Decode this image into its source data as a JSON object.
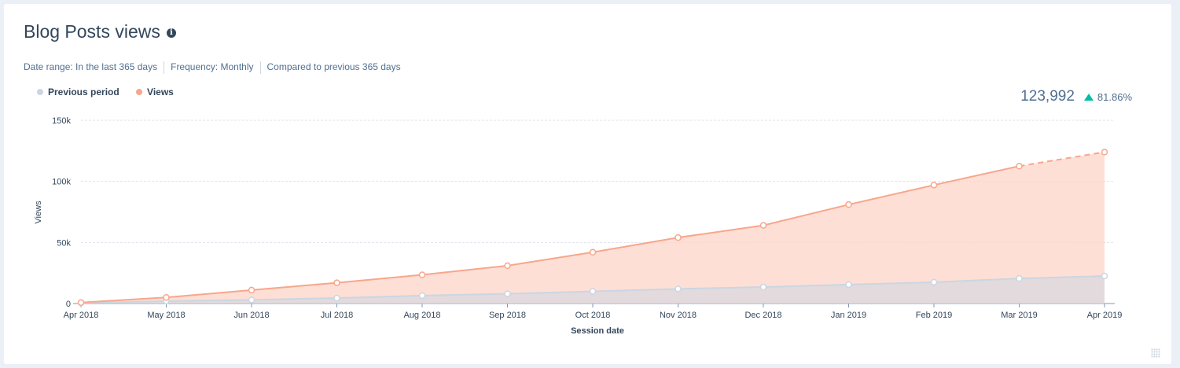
{
  "header": {
    "title": "Blog Posts views",
    "info_icon": "info-icon"
  },
  "filters": {
    "date_range": "Date range: In the last 365 days",
    "frequency": "Frequency: Monthly",
    "compare": "Compared to previous 365 days"
  },
  "kpi": {
    "value": "123,992",
    "change": "81.86%",
    "trend": "up",
    "trend_color": "#00bda5"
  },
  "chart_data": {
    "type": "area",
    "xlabel": "Session date",
    "ylabel": "Views",
    "ylim": [
      0,
      150000
    ],
    "yticks": [
      0,
      50000,
      100000,
      150000
    ],
    "ytick_labels": [
      "0",
      "50k",
      "100k",
      "150k"
    ],
    "categories": [
      "Apr 2018",
      "May 2018",
      "Jun 2018",
      "Jul 2018",
      "Aug 2018",
      "Sep 2018",
      "Oct 2018",
      "Nov 2018",
      "Dec 2018",
      "Jan 2019",
      "Feb 2019",
      "Mar 2019",
      "Apr 2019"
    ],
    "legend_position": "top-left",
    "grid": true,
    "series": [
      {
        "name": "Previous period",
        "color": "#cbd6e2",
        "values": [
          500,
          2000,
          3000,
          4500,
          6500,
          8000,
          10000,
          12000,
          13500,
          15500,
          17500,
          20500,
          22500
        ]
      },
      {
        "name": "Views",
        "color": "#f8a68b",
        "values": [
          800,
          5000,
          11000,
          17000,
          23500,
          31000,
          42000,
          54000,
          64000,
          81000,
          97000,
          112500,
          123992
        ],
        "last_segment_dashed": true
      }
    ]
  }
}
